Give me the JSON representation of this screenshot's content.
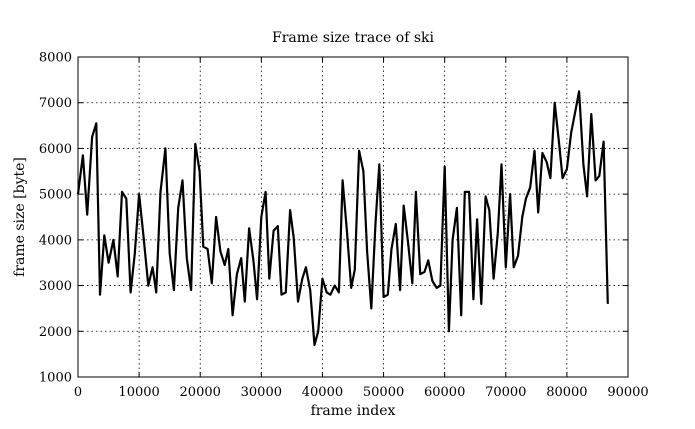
{
  "chart_data": {
    "type": "line",
    "title": "Frame size trace of ski",
    "xlabel": "frame index",
    "ylabel": "frame size [byte]",
    "xlim": [
      0,
      90000
    ],
    "ylim": [
      1000,
      8000
    ],
    "xticks": [
      0,
      10000,
      20000,
      30000,
      40000,
      50000,
      60000,
      70000,
      80000,
      90000
    ],
    "yticks": [
      1000,
      2000,
      3000,
      4000,
      5000,
      6000,
      7000,
      8000
    ],
    "grid": true,
    "series": [
      {
        "values": [
          [
            0,
            5000
          ],
          [
            800,
            5850
          ],
          [
            1500,
            4550
          ],
          [
            2300,
            6250
          ],
          [
            3000,
            6550
          ],
          [
            3600,
            2800
          ],
          [
            4300,
            4100
          ],
          [
            5000,
            3500
          ],
          [
            5800,
            4000
          ],
          [
            6500,
            3200
          ],
          [
            7200,
            5050
          ],
          [
            7900,
            4900
          ],
          [
            8600,
            2850
          ],
          [
            9300,
            3700
          ],
          [
            10000,
            5000
          ],
          [
            10700,
            4100
          ],
          [
            11500,
            3000
          ],
          [
            12200,
            3400
          ],
          [
            12800,
            2850
          ],
          [
            13500,
            5050
          ],
          [
            14300,
            6000
          ],
          [
            15000,
            3700
          ],
          [
            15700,
            2900
          ],
          [
            16400,
            4700
          ],
          [
            17100,
            5300
          ],
          [
            17800,
            3600
          ],
          [
            18500,
            2900
          ],
          [
            19200,
            6100
          ],
          [
            19900,
            5500
          ],
          [
            20500,
            3850
          ],
          [
            21200,
            3800
          ],
          [
            21900,
            3050
          ],
          [
            22600,
            4500
          ],
          [
            23300,
            3750
          ],
          [
            24000,
            3450
          ],
          [
            24600,
            3800
          ],
          [
            25300,
            2350
          ],
          [
            26000,
            3250
          ],
          [
            26700,
            3600
          ],
          [
            27300,
            2650
          ],
          [
            28000,
            4250
          ],
          [
            28700,
            3550
          ],
          [
            29300,
            2700
          ],
          [
            30000,
            4500
          ],
          [
            30700,
            5050
          ],
          [
            31300,
            3150
          ],
          [
            32000,
            4200
          ],
          [
            32700,
            4300
          ],
          [
            33300,
            2800
          ],
          [
            34000,
            2850
          ],
          [
            34700,
            4650
          ],
          [
            35300,
            4050
          ],
          [
            36000,
            2650
          ],
          [
            36700,
            3150
          ],
          [
            37300,
            3400
          ],
          [
            38000,
            2900
          ],
          [
            38700,
            1700
          ],
          [
            39300,
            2000
          ],
          [
            40000,
            3150
          ],
          [
            40700,
            2850
          ],
          [
            41300,
            2800
          ],
          [
            42000,
            3000
          ],
          [
            42700,
            2850
          ],
          [
            43300,
            5300
          ],
          [
            44000,
            4200
          ],
          [
            44700,
            2950
          ],
          [
            45300,
            3350
          ],
          [
            46000,
            5950
          ],
          [
            46700,
            5500
          ],
          [
            47300,
            3750
          ],
          [
            48000,
            2500
          ],
          [
            48700,
            4400
          ],
          [
            49300,
            5650
          ],
          [
            50000,
            2750
          ],
          [
            50700,
            2800
          ],
          [
            51300,
            3800
          ],
          [
            52000,
            4350
          ],
          [
            52700,
            2900
          ],
          [
            53300,
            4750
          ],
          [
            54000,
            3950
          ],
          [
            54700,
            3050
          ],
          [
            55300,
            5050
          ],
          [
            56000,
            3250
          ],
          [
            56700,
            3300
          ],
          [
            57300,
            3550
          ],
          [
            58000,
            3100
          ],
          [
            58700,
            2950
          ],
          [
            59300,
            3000
          ],
          [
            60000,
            5600
          ],
          [
            60700,
            2000
          ],
          [
            61300,
            4000
          ],
          [
            62000,
            4700
          ],
          [
            62700,
            2350
          ],
          [
            63300,
            5050
          ],
          [
            64000,
            5050
          ],
          [
            64700,
            2700
          ],
          [
            65300,
            4450
          ],
          [
            66000,
            2600
          ],
          [
            66700,
            4950
          ],
          [
            67300,
            4650
          ],
          [
            68000,
            3150
          ],
          [
            68700,
            4150
          ],
          [
            69300,
            5650
          ],
          [
            70000,
            3400
          ],
          [
            70700,
            5000
          ],
          [
            71300,
            3400
          ],
          [
            72000,
            3650
          ],
          [
            72700,
            4500
          ],
          [
            73300,
            4900
          ],
          [
            74000,
            5150
          ],
          [
            74700,
            5950
          ],
          [
            75300,
            4600
          ],
          [
            76000,
            5900
          ],
          [
            76700,
            5700
          ],
          [
            77300,
            5350
          ],
          [
            78000,
            7000
          ],
          [
            78700,
            6150
          ],
          [
            79300,
            5350
          ],
          [
            80000,
            5550
          ],
          [
            80700,
            6350
          ],
          [
            81300,
            6750
          ],
          [
            82000,
            7250
          ],
          [
            82700,
            5650
          ],
          [
            83300,
            4950
          ],
          [
            84000,
            6750
          ],
          [
            84700,
            5300
          ],
          [
            85300,
            5400
          ],
          [
            86000,
            6150
          ],
          [
            86700,
            2600
          ]
        ]
      }
    ]
  }
}
